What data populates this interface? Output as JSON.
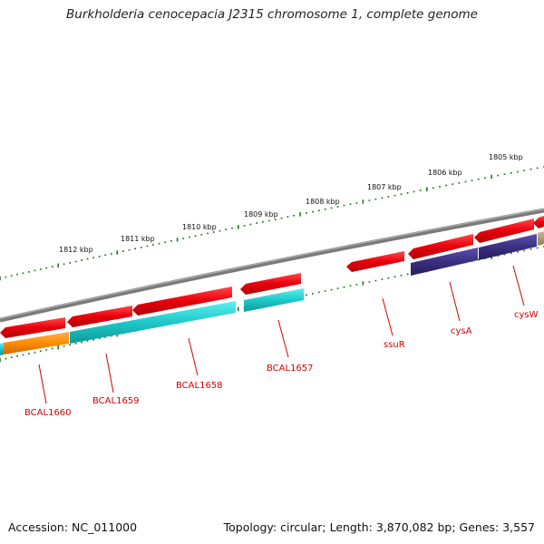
{
  "title": "Burkholderia cenocepacia J2315 chromosome 1, complete genome",
  "footer": {
    "accession": "Accession: NC_011000",
    "summary": "Topology: circular; Length: 3,870,082 bp; Genes: 3,557"
  },
  "kbp_labels": [
    "1812 kbp",
    "1811 kbp",
    "1810 kbp",
    "1809 kbp",
    "1808 kbp",
    "1807 kbp",
    "1806 kbp",
    "1805 kbp"
  ],
  "gene_labels": [
    "BCAL1660",
    "BCAL1659",
    "BCAL1658",
    "BCAL1657",
    "ssuR",
    "cysA",
    "cysW"
  ],
  "colors": {
    "backbone": "#7a7a7a",
    "tick": "#1a7a1a",
    "gene_red": "#e8000b",
    "cds_cyan": "#1ec8c8",
    "cds_orange": "#ff8c00",
    "cds_purple": "#3a2f80",
    "cds_khaki": "#a89a70",
    "label_red": "#d40000"
  }
}
